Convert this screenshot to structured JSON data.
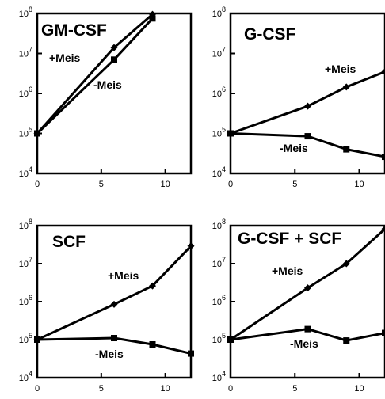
{
  "chart_data": [
    {
      "type": "line",
      "title": "GM-CSF",
      "yscale": "log",
      "xlim": [
        0,
        12
      ],
      "ylim": [
        10000,
        100000000
      ],
      "xticks": [
        0,
        5,
        10
      ],
      "yticks": [
        {
          "base": "10",
          "exp": "4"
        },
        {
          "base": "10",
          "exp": "5"
        },
        {
          "base": "10",
          "exp": "6"
        },
        {
          "base": "10",
          "exp": "7"
        },
        {
          "base": "10",
          "exp": "8"
        }
      ],
      "series": [
        {
          "name": "+Meis",
          "marker": "diamond",
          "x": [
            0,
            6,
            9
          ],
          "y": [
            100000,
            14000000,
            95000000
          ]
        },
        {
          "name": "-Meis",
          "marker": "square",
          "x": [
            0,
            6,
            9
          ],
          "y": [
            100000,
            7000000,
            75000000
          ]
        }
      ]
    },
    {
      "type": "line",
      "title": "G-CSF",
      "yscale": "log",
      "xlim": [
        0,
        12
      ],
      "ylim": [
        10000,
        100000000
      ],
      "xticks": [
        0,
        5,
        10
      ],
      "yticks": [
        {
          "base": "10",
          "exp": "4"
        },
        {
          "base": "10",
          "exp": "5"
        },
        {
          "base": "10",
          "exp": "6"
        },
        {
          "base": "10",
          "exp": "7"
        },
        {
          "base": "10",
          "exp": "8"
        }
      ],
      "series": [
        {
          "name": "+Meis",
          "marker": "diamond",
          "x": [
            0,
            6,
            9,
            12
          ],
          "y": [
            100000,
            480000,
            1450000,
            3500000
          ]
        },
        {
          "name": "-Meis",
          "marker": "square",
          "x": [
            0,
            6,
            9,
            12
          ],
          "y": [
            100000,
            85000,
            40000,
            26000
          ]
        }
      ]
    },
    {
      "type": "line",
      "title": "SCF",
      "yscale": "log",
      "xlim": [
        0,
        12
      ],
      "ylim": [
        10000,
        100000000
      ],
      "xticks": [
        0,
        5,
        10
      ],
      "yticks": [
        {
          "base": "10",
          "exp": "4"
        },
        {
          "base": "10",
          "exp": "5"
        },
        {
          "base": "10",
          "exp": "6"
        },
        {
          "base": "10",
          "exp": "7"
        },
        {
          "base": "10",
          "exp": "8"
        }
      ],
      "series": [
        {
          "name": "+Meis",
          "marker": "diamond",
          "x": [
            0,
            6,
            9,
            12
          ],
          "y": [
            100000,
            850000,
            2600000,
            29000000
          ]
        },
        {
          "name": "-Meis",
          "marker": "square",
          "x": [
            0,
            6,
            9,
            12
          ],
          "y": [
            100000,
            110000,
            75000,
            43000
          ]
        }
      ]
    },
    {
      "type": "line",
      "title": "G-CSF + SCF",
      "yscale": "log",
      "xlim": [
        0,
        12
      ],
      "ylim": [
        10000,
        100000000
      ],
      "xticks": [
        0,
        5,
        10
      ],
      "yticks": [
        {
          "base": "10",
          "exp": "4"
        },
        {
          "base": "10",
          "exp": "5"
        },
        {
          "base": "10",
          "exp": "6"
        },
        {
          "base": "10",
          "exp": "7"
        },
        {
          "base": "10",
          "exp": "8"
        }
      ],
      "series": [
        {
          "name": "+Meis",
          "marker": "diamond",
          "x": [
            0,
            6,
            9,
            12
          ],
          "y": [
            100000,
            2300000,
            10000000,
            82000000
          ]
        },
        {
          "name": "-Meis",
          "marker": "square",
          "x": [
            0,
            6,
            9,
            12
          ],
          "y": [
            100000,
            190000,
            95000,
            150000
          ]
        }
      ]
    }
  ]
}
